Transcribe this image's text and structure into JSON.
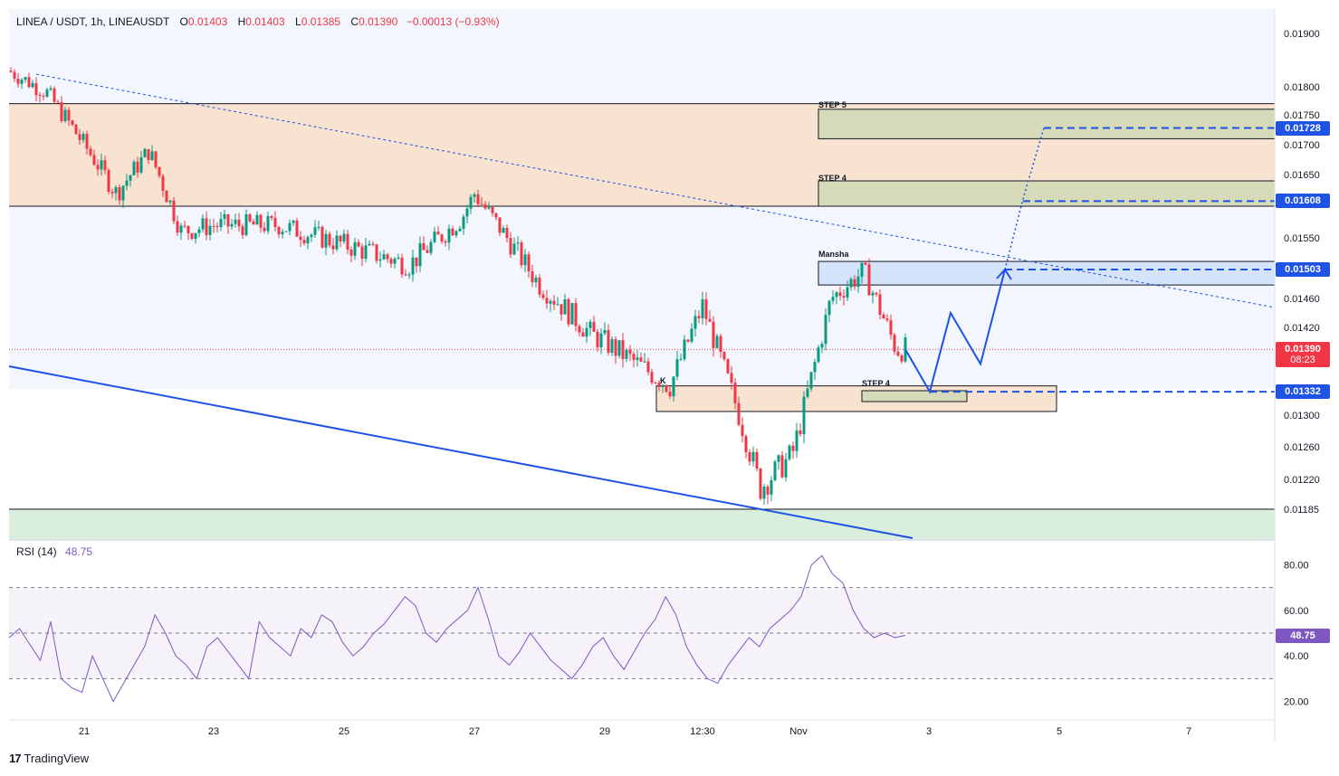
{
  "header": {
    "symbol": "LINEA / USDT, 1h, LINEAUSDT",
    "o_label": "O",
    "o_value": "0.01403",
    "h_label": "H",
    "h_value": "0.01403",
    "l_label": "L",
    "l_value": "0.01385",
    "c_label": "C",
    "c_value": "0.01390",
    "change": "−0.00013 (−0.93%)"
  },
  "price_axis": {
    "ticks": [
      "0.01900",
      "0.01800",
      "0.01750",
      "0.01700",
      "0.01650",
      "0.01550",
      "0.01460",
      "0.01420",
      "0.01300",
      "0.01260",
      "0.01220",
      "0.01185"
    ],
    "tags": [
      {
        "label": "0.01728",
        "color": "#1e53e5"
      },
      {
        "label": "0.01608",
        "color": "#1e53e5"
      },
      {
        "label": "0.01503",
        "color": "#1e53e5"
      },
      {
        "label": "0.01390",
        "sub": "08:23",
        "color": "#f23645"
      },
      {
        "label": "0.01332",
        "color": "#1e53e5"
      }
    ]
  },
  "time_axis": {
    "ticks": [
      "21",
      "23",
      "25",
      "27",
      "29",
      "12:30",
      "Nov",
      "3",
      "5",
      "7"
    ]
  },
  "annotations": {
    "step5": "STEP 5",
    "step4_upper": "STEP 4",
    "mansha": "Mansha",
    "step4_lower": "STEP 4",
    "ok": "K"
  },
  "rsi": {
    "label": "RSI (14)",
    "value": "48.75",
    "ticks": [
      "80.00",
      "60.00",
      "40.00",
      "20.00"
    ],
    "tag": "48.75",
    "color": "#7e57c2"
  },
  "brand": "TradingView",
  "chart_data": {
    "type": "candlestick",
    "symbol": "LINEAUSDT",
    "interval": "1h",
    "ohlc_last": {
      "open": 0.01403,
      "high": 0.01403,
      "low": 0.01385,
      "close": 0.0139
    },
    "colors": {
      "up": "#089981",
      "down": "#f23645",
      "projection": "#1e53e5",
      "rsi": "#7e57c2"
    },
    "ylim": [
      0.0116,
      0.0193
    ],
    "close_path": [
      {
        "x": "Oct 20",
        "y": 0.0183
      },
      {
        "x": "Oct 20.5",
        "y": 0.0179
      },
      {
        "x": "Oct 21",
        "y": 0.017
      },
      {
        "x": "Oct 21.5",
        "y": 0.0162
      },
      {
        "x": "Oct 22",
        "y": 0.0169
      },
      {
        "x": "Oct 22.5",
        "y": 0.0156
      },
      {
        "x": "Oct 23",
        "y": 0.0157
      },
      {
        "x": "Oct 24",
        "y": 0.0157
      },
      {
        "x": "Oct 25",
        "y": 0.0154
      },
      {
        "x": "Oct 26",
        "y": 0.0151
      },
      {
        "x": "Oct 26.8",
        "y": 0.0158
      },
      {
        "x": "Oct 27",
        "y": 0.0162
      },
      {
        "x": "Oct 28",
        "y": 0.0148
      },
      {
        "x": "Oct 28.8",
        "y": 0.0141
      },
      {
        "x": "Oct 29",
        "y": 0.014
      },
      {
        "x": "Oct 30",
        "y": 0.0134
      },
      {
        "x": "Oct 30.5",
        "y": 0.0145
      },
      {
        "x": "Oct 31",
        "y": 0.0132
      },
      {
        "x": "Oct 31.4",
        "y": 0.0121
      },
      {
        "x": "Oct 31.9",
        "y": 0.0125
      },
      {
        "x": "Nov 1",
        "y": 0.0128
      },
      {
        "x": "Nov 1.5",
        "y": 0.0146
      },
      {
        "x": "Nov 2",
        "y": 0.015
      },
      {
        "x": "Nov 2.5",
        "y": 0.0139
      }
    ],
    "levels": {
      "supply_zone": [
        0.016,
        0.0177
      ],
      "demand_zone": [
        0.01305,
        0.0134
      ],
      "support_zone": [
        0.0117,
        0.01185
      ],
      "mansha_zone": [
        0.0148,
        0.01515
      ],
      "step4_zone": [
        0.016,
        0.0164
      ],
      "step5_zone": [
        0.0171,
        0.0176
      ],
      "targets": [
        0.01728,
        0.01608,
        0.01503,
        0.01332
      ]
    },
    "projection": [
      0.0139,
      0.01332,
      0.0144,
      0.0137,
      0.01503,
      0.01728
    ],
    "rsi_series": [
      48,
      52,
      45,
      38,
      55,
      30,
      26,
      24,
      40,
      30,
      20,
      28,
      36,
      44,
      58,
      50,
      40,
      36,
      30,
      44,
      48,
      42,
      36,
      30,
      55,
      48,
      44,
      40,
      52,
      48,
      58,
      55,
      46,
      40,
      44,
      50,
      54,
      60,
      66,
      62,
      50,
      46,
      52,
      56,
      60,
      70,
      56,
      40,
      36,
      42,
      50,
      44,
      38,
      34,
      30,
      36,
      44,
      48,
      40,
      34,
      42,
      50,
      56,
      66,
      58,
      44,
      36,
      30,
      28,
      36,
      42,
      48,
      44,
      52,
      56,
      60,
      66,
      80,
      84,
      76,
      72,
      60,
      52,
      48,
      50,
      48,
      49
    ]
  }
}
